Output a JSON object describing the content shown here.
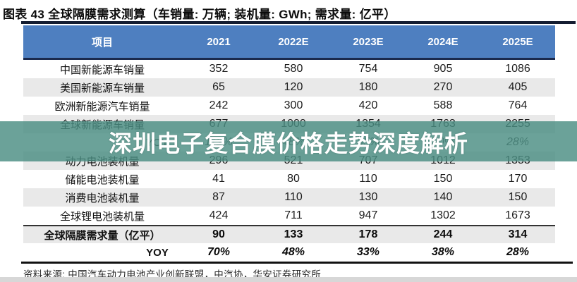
{
  "figure_title": "图表 43 全球隔膜需求测算（车销量: 万辆; 装机量: GWh; 需求量: 亿平）",
  "overlay_banner": {
    "text": "深圳电子复合膜价格走势深度解析",
    "bg_color": "#4A8E82"
  },
  "source_note": "资料来源: 中国汽车动力电池产业创新联盟，中汽协，华安证券研究所",
  "colors": {
    "header_bg": "#4E7FC0",
    "header_text": "#FFFFFF",
    "zebra_gray": "#E9E9E9",
    "rule_navy": "#1B2A4D",
    "rule_black": "#141D31",
    "banner_teal_rgba": "rgba(74,142,130,0.82)",
    "bottom_strip": "#D7D7D7"
  },
  "chart_data": {
    "type": "table",
    "title": "全球隔膜需求测算",
    "units_note": "车销量: 万辆; 装机量: GWh; 需求量: 亿平",
    "columns": [
      "项目",
      "2021",
      "2022E",
      "2023E",
      "2024E",
      "2025E"
    ],
    "rows": [
      {
        "label": "中国新能源车销量",
        "values": [
          "352",
          "580",
          "754",
          "905",
          "1086"
        ],
        "style": ""
      },
      {
        "label": "美国新能源车销量",
        "values": [
          "65",
          "120",
          "180",
          "270",
          "405"
        ],
        "style": ""
      },
      {
        "label": "欧洲新能源汽车销量",
        "values": [
          "242",
          "300",
          "420",
          "588",
          "764"
        ],
        "style": ""
      },
      {
        "label": "全球新能源车销量",
        "values": [
          "677",
          "1000",
          "1354",
          "1763",
          "2255"
        ],
        "style": ""
      },
      {
        "label": "YOY",
        "values": [
          "112%",
          "48%",
          "35%",
          "30%",
          "28%"
        ],
        "style": "yoy"
      },
      {
        "label": "动力电池装机量",
        "values": [
          "296",
          "521",
          "707",
          "1012",
          "1353"
        ],
        "style": ""
      },
      {
        "label": "储能电池装机量",
        "values": [
          "41",
          "80",
          "110",
          "150",
          "170"
        ],
        "style": ""
      },
      {
        "label": "消费电池装机量",
        "values": [
          "87",
          "110",
          "130",
          "140",
          "150"
        ],
        "style": ""
      },
      {
        "label": "全球锂电池装机量",
        "values": [
          "424",
          "711",
          "947",
          "1302",
          "1673"
        ],
        "style": ""
      },
      {
        "label": "全球隔膜需求量（亿平）",
        "values": [
          "90",
          "133",
          "178",
          "244",
          "314"
        ],
        "style": "total"
      },
      {
        "label": "YOY",
        "values": [
          "70%",
          "48%",
          "33%",
          "38%",
          "28%"
        ],
        "style": "yoy-total"
      }
    ]
  }
}
